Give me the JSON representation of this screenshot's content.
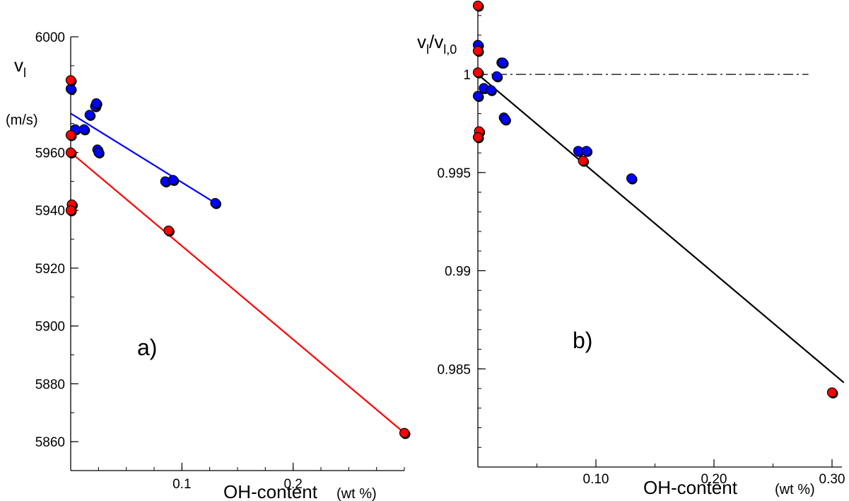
{
  "chart_data": [
    {
      "panel": "a)",
      "type": "scatter",
      "ylabel": "v",
      "ylabel_sub": "l",
      "yunit": "(m/s)",
      "xlabel": "OH-content",
      "xunit": "(wt %)",
      "xlim": [
        0,
        0.3
      ],
      "ylim": [
        5850,
        6000
      ],
      "x_ticks": [
        0.1,
        0.2
      ],
      "x_tick_labels": [
        "0.1",
        "0.2"
      ],
      "y_ticks": [
        5860,
        5880,
        5900,
        5920,
        5940,
        5960,
        6000
      ],
      "y_tick_labels": [
        "5860",
        "5880",
        "5900",
        "5920",
        "5940",
        "5960",
        "6000"
      ],
      "series": [
        {
          "color": "#0000ff",
          "points": [
            [
              0.0,
              5982
            ],
            [
              0.004,
              5968
            ],
            [
              0.012,
              5968
            ],
            [
              0.017,
              5973
            ],
            [
              0.022,
              5976
            ],
            [
              0.023,
              5977
            ],
            [
              0.024,
              5961
            ],
            [
              0.025,
              5960
            ],
            [
              0.085,
              5950
            ],
            [
              0.092,
              5950.5
            ],
            [
              0.13,
              5942.5
            ]
          ],
          "fit": [
            [
              0.0,
              5973.5
            ],
            [
              0.13,
              5942.5
            ]
          ]
        },
        {
          "color": "#ff0000",
          "points": [
            [
              0.0,
              5985
            ],
            [
              0.0,
              5966
            ],
            [
              0.0,
              5960
            ],
            [
              0.001,
              5942
            ],
            [
              0.0,
              5940
            ],
            [
              0.088,
              5933
            ],
            [
              0.3,
              5863
            ]
          ],
          "fit": [
            [
              0.0,
              5960
            ],
            [
              0.3,
              5863
            ]
          ]
        }
      ],
      "grid": false
    },
    {
      "panel": "b)",
      "type": "scatter",
      "ylabel": "v",
      "ylabel_sub": "l",
      "ylabel_div": "/v",
      "ylabel_div_sub": "l,0",
      "xlabel": "OH-content",
      "xunit": "(wt %)",
      "xlim": [
        0,
        0.3
      ],
      "ylim": [
        0.98,
        1.0035
      ],
      "x_ticks": [
        0.1,
        0.2,
        0.3
      ],
      "x_tick_labels": [
        "0.10",
        "0.20",
        "0.30"
      ],
      "y_ticks": [
        0.985,
        0.99,
        0.995,
        1.0
      ],
      "y_tick_labels": [
        "0.985",
        "0.99",
        "0.995",
        "1"
      ],
      "reference_line": 1.0,
      "series": [
        {
          "color": "#0000ff",
          "points": [
            [
              0.0,
              1.0015
            ],
            [
              0.0,
              0.9989
            ],
            [
              0.005,
              0.9993
            ],
            [
              0.011,
              0.9992
            ],
            [
              0.016,
              0.9999
            ],
            [
              0.02,
              1.0006
            ],
            [
              0.021,
              1.0006
            ],
            [
              0.022,
              0.9978
            ],
            [
              0.023,
              0.9977
            ],
            [
              0.085,
              0.9961
            ],
            [
              0.092,
              0.9961
            ],
            [
              0.13,
              0.9947
            ]
          ]
        },
        {
          "color": "#ff0000",
          "points": [
            [
              0.0,
              1.0035
            ],
            [
              0.0,
              1.0012
            ],
            [
              0.0,
              1.0001
            ],
            [
              0.001,
              0.9971
            ],
            [
              0.0,
              0.9968
            ],
            [
              0.089,
              0.9956
            ],
            [
              0.3,
              0.9838
            ]
          ]
        }
      ],
      "fit": [
        [
          0.0,
          1.0
        ],
        [
          0.31,
          0.9843
        ]
      ],
      "grid": false
    }
  ]
}
